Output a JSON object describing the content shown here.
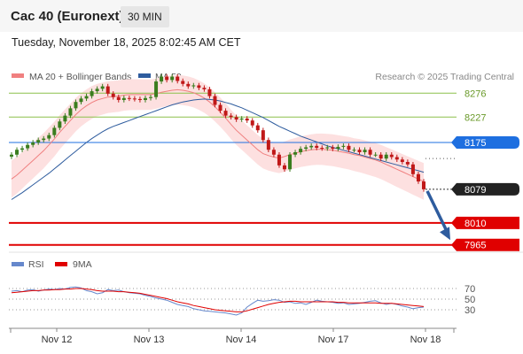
{
  "header": {
    "title": "Cac 40 (Euronext)",
    "timeframe": "30 MIN"
  },
  "datetime": "Tuesday, November 18, 2025 8:02:45 AM CET",
  "legend": {
    "bb_label": "MA 20 + Bollinger Bands",
    "ma50_label": "MA 50",
    "rsi_label": "RSI",
    "rsi_ma_label": "9MA"
  },
  "credit": "Research © 2025 Trading Central",
  "colors": {
    "bb": "#f08080",
    "ma50": "#2e5c9e",
    "support": "#e00000",
    "resistance": "#8cc04a",
    "pivot": "#1e6fe0",
    "arrow": "#2e5c9e",
    "up_candle": "#3a7d1e",
    "down_candle": "#c01818",
    "rsi": "#6688cc",
    "rsi_ma": "#e00000",
    "band_fill": "#fde0e0"
  },
  "chart_data": {
    "type": "candlestick",
    "price_levels": [
      {
        "value": 8276,
        "label": "8276",
        "kind": "resistance"
      },
      {
        "value": 8227,
        "label": "8227",
        "kind": "resistance"
      },
      {
        "value": 8175,
        "label": "8175",
        "kind": "pivot"
      },
      {
        "value": 8079,
        "label": "8079",
        "kind": "last"
      },
      {
        "value": 8010,
        "label": "8010",
        "kind": "support"
      },
      {
        "value": 7965,
        "label": "7965",
        "kind": "support"
      }
    ],
    "x_ticks": [
      "Nov 12",
      "Nov 13",
      "Nov 14",
      "Nov 17",
      "Nov 18"
    ],
    "rsi_ticks": [
      "70",
      "50",
      "30"
    ],
    "closes": [
      8150,
      8160,
      8163,
      8170,
      8175,
      8180,
      8183,
      8190,
      8205,
      8218,
      8230,
      8245,
      8258,
      8265,
      8270,
      8280,
      8285,
      8290,
      8275,
      8268,
      8262,
      8266,
      8265,
      8264,
      8262,
      8266,
      8268,
      8300,
      8310,
      8303,
      8310,
      8301,
      8295,
      8290,
      8292,
      8287,
      8284,
      8270,
      8252,
      8240,
      8230,
      8227,
      8222,
      8224,
      8220,
      8210,
      8200,
      8180,
      8160,
      8150,
      8128,
      8120,
      8150,
      8155,
      8162,
      8165,
      8168,
      8164,
      8163,
      8165,
      8162,
      8166,
      8168,
      8160,
      8160,
      8155,
      8160,
      8150,
      8150,
      8142,
      8150,
      8145,
      8140,
      8135,
      8130,
      8110,
      8095,
      8079
    ],
    "ma20": [
      8100,
      8108,
      8118,
      8128,
      8138,
      8148,
      8158,
      8170,
      8182,
      8196,
      8208,
      8220,
      8232,
      8242,
      8250,
      8257,
      8262,
      8265,
      8268,
      8269,
      8270,
      8272,
      8273,
      8273,
      8273,
      8273,
      8273,
      8275,
      8278,
      8280,
      8282,
      8283,
      8282,
      8280,
      8277,
      8272,
      8266,
      8258,
      8248,
      8237,
      8225,
      8212,
      8200,
      8190,
      8180,
      8170,
      8160,
      8152,
      8148,
      8145,
      8143,
      8146,
      8150,
      8153,
      8156,
      8158,
      8160,
      8161,
      8161,
      8160,
      8159,
      8157,
      8155,
      8153,
      8150,
      8148,
      8145,
      8142,
      8139,
      8135,
      8130,
      8125,
      8120,
      8115,
      8110,
      8105,
      8100,
      8095
    ],
    "ma50": [
      8058,
      8065,
      8072,
      8080,
      8088,
      8096,
      8104,
      8112,
      8121,
      8130,
      8139,
      8148,
      8157,
      8166,
      8175,
      8183,
      8190,
      8197,
      8203,
      8208,
      8212,
      8216,
      8220,
      8224,
      8228,
      8232,
      8236,
      8240,
      8244,
      8248,
      8252,
      8255,
      8258,
      8260,
      8262,
      8263,
      8264,
      8263,
      8262,
      8260,
      8257,
      8254,
      8250,
      8246,
      8241,
      8236,
      8231,
      8226,
      8220,
      8214,
      8208,
      8203,
      8198,
      8193,
      8188,
      8184,
      8180,
      8176,
      8172,
      8168,
      8165,
      8162,
      8159,
      8156,
      8153,
      8150,
      8147,
      8144,
      8141,
      8138,
      8135,
      8132,
      8129,
      8126,
      8123,
      8120,
      8117,
      8114
    ],
    "rsi": [
      65,
      66,
      64,
      67,
      68,
      65,
      67,
      69,
      68,
      70,
      69,
      72,
      73,
      71,
      66,
      64,
      60,
      62,
      68,
      66,
      67,
      64,
      62,
      61,
      60,
      57,
      55,
      52,
      50,
      48,
      44,
      40,
      38,
      36,
      32,
      30,
      28,
      27,
      26,
      25,
      24,
      22,
      20,
      24,
      35,
      42,
      48,
      46,
      47,
      49,
      48,
      44,
      45,
      42,
      43,
      40,
      44,
      48,
      46,
      45,
      44,
      42,
      43,
      40,
      41,
      42,
      44,
      46,
      47,
      43,
      40,
      42,
      40,
      37,
      35,
      32,
      34,
      35
    ],
    "rsi_ma": [
      62,
      63,
      64,
      65,
      66,
      66,
      67,
      67,
      68,
      68,
      69,
      69,
      70,
      70,
      69,
      68,
      66,
      65,
      65,
      65,
      64,
      64,
      63,
      62,
      61,
      59,
      57,
      55,
      53,
      51,
      48,
      45,
      43,
      41,
      38,
      36,
      34,
      32,
      30,
      29,
      28,
      27,
      26,
      26,
      28,
      31,
      34,
      37,
      40,
      42,
      44,
      45,
      46,
      46,
      45,
      45,
      45,
      45,
      45,
      45,
      45,
      44,
      44,
      43,
      43,
      43,
      43,
      43,
      43,
      42,
      42,
      42,
      41,
      40,
      39,
      38,
      37,
      36
    ],
    "ylim": [
      7950,
      8340
    ],
    "rsi_ylim": [
      0,
      100
    ]
  }
}
